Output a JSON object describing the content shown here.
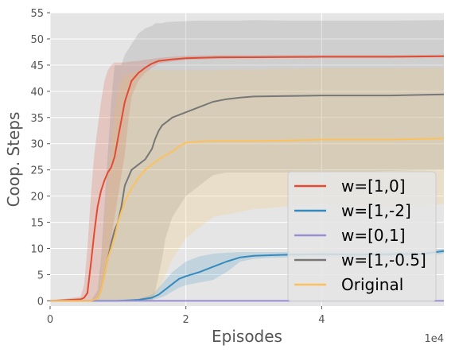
{
  "chart_data": {
    "type": "line",
    "title": "",
    "xlabel": "Episodes",
    "ylabel": "Coop. Steps",
    "x_offset_label": "1e4",
    "xlim": [
      0,
      5.8
    ],
    "ylim": [
      -1,
      55
    ],
    "x_ticks": [
      0,
      2,
      4
    ],
    "x_tick_labels": [
      "0",
      "2",
      "4"
    ],
    "y_ticks": [
      0,
      5,
      10,
      15,
      20,
      25,
      30,
      35,
      40,
      45,
      50,
      55
    ],
    "y_tick_labels": [
      "0",
      "5",
      "10",
      "15",
      "20",
      "25",
      "30",
      "35",
      "40",
      "45",
      "50",
      "55"
    ],
    "grid": true,
    "background": "#e5e5e5",
    "legend_position": "lower-right",
    "series": [
      {
        "name": "w=[1,0]",
        "color": "#e24a33",
        "x": [
          0,
          0.45,
          0.5,
          0.55,
          0.6,
          0.65,
          0.7,
          0.75,
          0.8,
          0.85,
          0.9,
          0.95,
          1.0,
          1.1,
          1.15,
          1.2,
          1.3,
          1.4,
          1.5,
          1.6,
          1.8,
          2.0,
          2.5,
          3.0,
          4.0,
          5.0,
          5.8
        ],
        "y": [
          0,
          0.3,
          0.6,
          1.5,
          7,
          13,
          18,
          21,
          23,
          24.5,
          25.5,
          27.5,
          31,
          38,
          40,
          42,
          43.5,
          44.5,
          45.3,
          45.8,
          46.1,
          46.3,
          46.5,
          46.5,
          46.6,
          46.6,
          46.7
        ],
        "lower": [
          0,
          0,
          0,
          0,
          0,
          0,
          0.5,
          2,
          5,
          8,
          12,
          16,
          20,
          28,
          34,
          39,
          42,
          43.5,
          44.5,
          45.3,
          45.7,
          46.0,
          46.2,
          46.3,
          46.4,
          46.4,
          46.5
        ],
        "upper": [
          0,
          0.8,
          3,
          10,
          20,
          28,
          33,
          38,
          42,
          44,
          45,
          45.5,
          45.5,
          45.5,
          45.6,
          45.7,
          45.8,
          46.0,
          46.2,
          46.4,
          46.6,
          46.8,
          46.9,
          46.9,
          46.9,
          46.9,
          47.0
        ]
      },
      {
        "name": "w=[1,-2]",
        "color": "#348abd",
        "x": [
          0,
          1.0,
          1.3,
          1.5,
          1.6,
          1.7,
          1.8,
          1.9,
          2.0,
          2.2,
          2.4,
          2.6,
          2.8,
          3.0,
          3.2,
          3.5,
          4.0,
          4.5,
          5.0,
          5.5,
          5.8
        ],
        "y": [
          0,
          0,
          0.2,
          0.6,
          1.2,
          2.2,
          3.2,
          4.2,
          4.7,
          5.5,
          6.5,
          7.5,
          8.3,
          8.6,
          8.7,
          8.8,
          8.9,
          8.8,
          8.9,
          9.0,
          9.5
        ],
        "lower": [
          0,
          0,
          0,
          0.2,
          0.5,
          1.0,
          1.8,
          2.5,
          3.0,
          3.5,
          4.0,
          5.5,
          7.5,
          8.0,
          8.2,
          8.3,
          8.4,
          8.3,
          8.4,
          8.5,
          9.0
        ],
        "upper": [
          0,
          0,
          0.4,
          1.2,
          2.5,
          4.0,
          5.5,
          6.5,
          7.5,
          8.5,
          9.0,
          9.2,
          9.3,
          9.3,
          9.3,
          9.3,
          9.4,
          9.3,
          9.4,
          9.5,
          10.0
        ]
      },
      {
        "name": "w=[0,1]",
        "color": "#988ed5",
        "x": [
          0,
          5.8
        ],
        "y": [
          0,
          0
        ]
      },
      {
        "name": "w=[1,-0.5]",
        "color": "#777777",
        "x": [
          0,
          0.6,
          0.7,
          0.75,
          0.8,
          0.85,
          0.9,
          0.95,
          1.0,
          1.05,
          1.1,
          1.2,
          1.3,
          1.4,
          1.5,
          1.55,
          1.6,
          1.65,
          1.7,
          1.8,
          2.0,
          2.2,
          2.4,
          2.6,
          2.8,
          3.0,
          3.5,
          4.0,
          5.0,
          5.8
        ],
        "y": [
          0,
          0,
          0.5,
          2,
          5,
          8,
          11,
          13.5,
          15,
          18,
          22,
          25,
          26,
          27,
          29,
          31,
          32.5,
          33.5,
          34,
          35,
          36,
          37,
          38,
          38.5,
          38.8,
          39,
          39.1,
          39.2,
          39.2,
          39.4
        ],
        "lower": [
          0,
          0,
          0,
          0,
          0,
          0,
          0,
          0,
          0,
          0,
          0,
          0,
          0,
          0,
          0,
          2,
          5,
          8,
          12,
          16,
          20,
          22,
          24,
          24.5,
          24.5,
          24.5,
          24.5,
          24.5,
          24.8,
          25
        ],
        "upper": [
          0,
          0,
          2,
          8,
          18,
          28,
          38,
          45,
          45,
          45,
          47,
          49,
          51,
          52,
          52.5,
          53,
          53,
          53,
          53.2,
          53.3,
          53.4,
          53.5,
          53.5,
          53.5,
          53.5,
          53.6,
          53.5,
          53.5,
          53.5,
          53.6
        ]
      },
      {
        "name": "Original",
        "color": "#fbc15e",
        "x": [
          0,
          0.6,
          0.7,
          0.75,
          0.8,
          0.85,
          0.9,
          0.95,
          1.0,
          1.05,
          1.1,
          1.2,
          1.3,
          1.4,
          1.5,
          1.6,
          1.7,
          1.8,
          1.9,
          2.0,
          2.2,
          2.4,
          3.0,
          3.5,
          4.0,
          5.0,
          5.8
        ],
        "y": [
          0,
          0,
          0.5,
          2,
          5,
          8,
          10,
          12,
          15,
          17,
          19,
          21.5,
          23.5,
          25,
          26,
          27,
          27.8,
          28.5,
          29.5,
          30.2,
          30.4,
          30.5,
          30.5,
          30.6,
          30.8,
          30.8,
          31
        ],
        "lower": [
          0,
          0,
          0,
          0,
          0,
          0,
          0,
          0,
          0,
          0,
          0,
          0,
          0,
          0,
          0,
          2,
          5,
          8,
          10,
          12,
          14,
          16,
          17.5,
          18,
          18.5,
          18,
          18.5
        ],
        "upper": [
          0,
          0,
          1.5,
          6,
          14,
          22,
          30,
          36,
          40,
          42,
          43,
          43.5,
          43.8,
          44,
          44,
          44,
          44,
          44,
          44,
          44,
          44,
          44,
          44.2,
          44.3,
          44.4,
          44.4,
          44.5
        ]
      }
    ]
  }
}
